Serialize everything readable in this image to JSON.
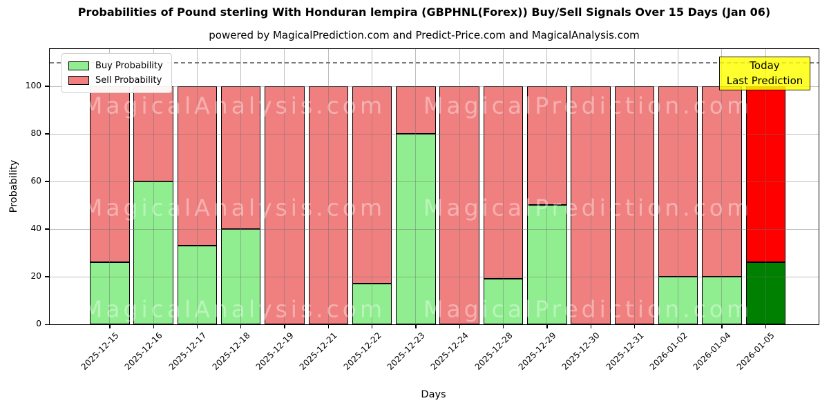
{
  "title": "Probabilities of Pound sterling With Honduran lempira (GBPHNL(Forex)) Buy/Sell Signals Over 15 Days (Jan 06)",
  "subtitle": "powered by MagicalPrediction.com and Predict-Price.com and MagicalAnalysis.com",
  "legend": {
    "buy_label": "Buy Probability",
    "sell_label": "Sell Probability"
  },
  "annotation_box": {
    "line1": "Today",
    "line2": "Last Prediction",
    "bg_color": "#ffff00"
  },
  "watermarks": {
    "left_text": "MagicalAnalysis.com",
    "right_text": "MagicalPrediction.com"
  },
  "colors": {
    "buy": "#90ee90",
    "sell": "#f08080",
    "buy_today": "#008000",
    "sell_today": "#ff0000",
    "grid": "#6e6e6e",
    "dashed_line": "#7a7a7a",
    "axes_edge": "#000000"
  },
  "chart_data": {
    "type": "bar",
    "stacked": true,
    "title": "Probabilities of Pound sterling With Honduran lempira (GBPHNL(Forex)) Buy/Sell Signals Over 15 Days (Jan 06)",
    "xlabel": "Days",
    "ylabel": "Probability",
    "categories": [
      "2025-12-15",
      "2025-12-16",
      "2025-12-17",
      "2025-12-18",
      "2025-12-19",
      "2025-12-21",
      "2025-12-22",
      "2025-12-23",
      "2025-12-24",
      "2025-12-28",
      "2025-12-29",
      "2025-12-30",
      "2025-12-31",
      "2026-01-02",
      "2026-01-04",
      "2026-01-05"
    ],
    "series": [
      {
        "name": "Buy Probability",
        "color": "#90ee90",
        "last_bar_color": "#008000",
        "values": [
          26,
          60,
          33,
          40,
          0,
          0,
          17,
          80,
          0,
          19,
          50,
          0,
          0,
          20,
          20,
          26
        ]
      },
      {
        "name": "Sell Probability",
        "color": "#f08080",
        "last_bar_color": "#ff0000",
        "values": [
          74,
          40,
          67,
          60,
          100,
          100,
          83,
          20,
          100,
          81,
          50,
          100,
          100,
          80,
          80,
          74
        ]
      }
    ],
    "yticks": [
      0,
      20,
      40,
      60,
      80,
      100
    ],
    "ylim": [
      0,
      115.6
    ],
    "dashed_line_y": 110,
    "grid": true,
    "legend_position": "upper left",
    "x_tick_rotation": 45
  }
}
